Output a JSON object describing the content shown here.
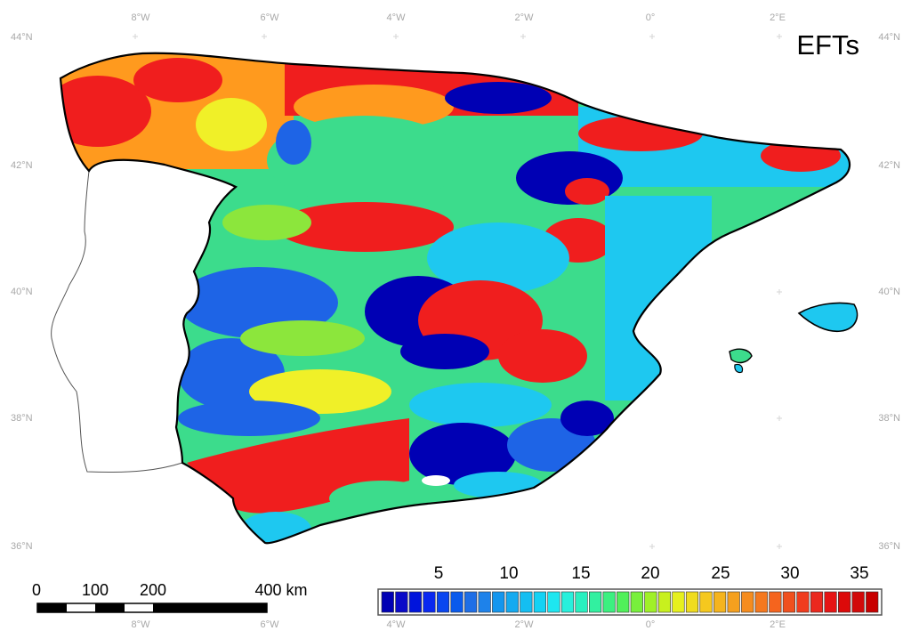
{
  "map": {
    "title": "EFTs",
    "top_longitude_labels": [
      "8°W",
      "6°W",
      "4°W",
      "2°W",
      "0°",
      "2°E"
    ],
    "bottom_longitude_labels": [
      "8°W",
      "6°W",
      "4°W",
      "2°W",
      "0°",
      "2°E"
    ],
    "latitude_labels": [
      "44°N",
      "42°N",
      "40°N",
      "38°N",
      "36°N"
    ],
    "region_colors": {
      "portugal": "#ffffff",
      "dark_blue": "#0000b4",
      "blue": "#1e64e6",
      "cyan": "#1ec8f0",
      "green": "#3cdc8c",
      "light_green": "#8ce63c",
      "yellow": "#f0f028",
      "orange": "#ff9a1e",
      "red": "#f01e1e"
    }
  },
  "scale_bar": {
    "labels": [
      "0",
      "100",
      "200",
      "400 km"
    ]
  },
  "legend": {
    "tick_labels": [
      "5",
      "10",
      "15",
      "20",
      "25",
      "30",
      "35"
    ],
    "colors": [
      "#0000b4",
      "#0a0ac8",
      "#0014dc",
      "#0a28f0",
      "#0a46f0",
      "#0a5aec",
      "#1e6ee6",
      "#1e82ea",
      "#1496ee",
      "#14aaf0",
      "#14bef2",
      "#14d2f4",
      "#1ee6f0",
      "#28f0dc",
      "#28f0c0",
      "#32f0a0",
      "#3cf080",
      "#50f05a",
      "#78f03c",
      "#a0f028",
      "#c8f01e",
      "#e6f01e",
      "#f0dc1e",
      "#f5c81e",
      "#f5b41e",
      "#f5a01e",
      "#f58c1e",
      "#f5781e",
      "#f5641e",
      "#f0501e",
      "#f03c1e",
      "#eb281e",
      "#e61414",
      "#dc0a0a",
      "#d20a0a",
      "#c80000"
    ]
  }
}
